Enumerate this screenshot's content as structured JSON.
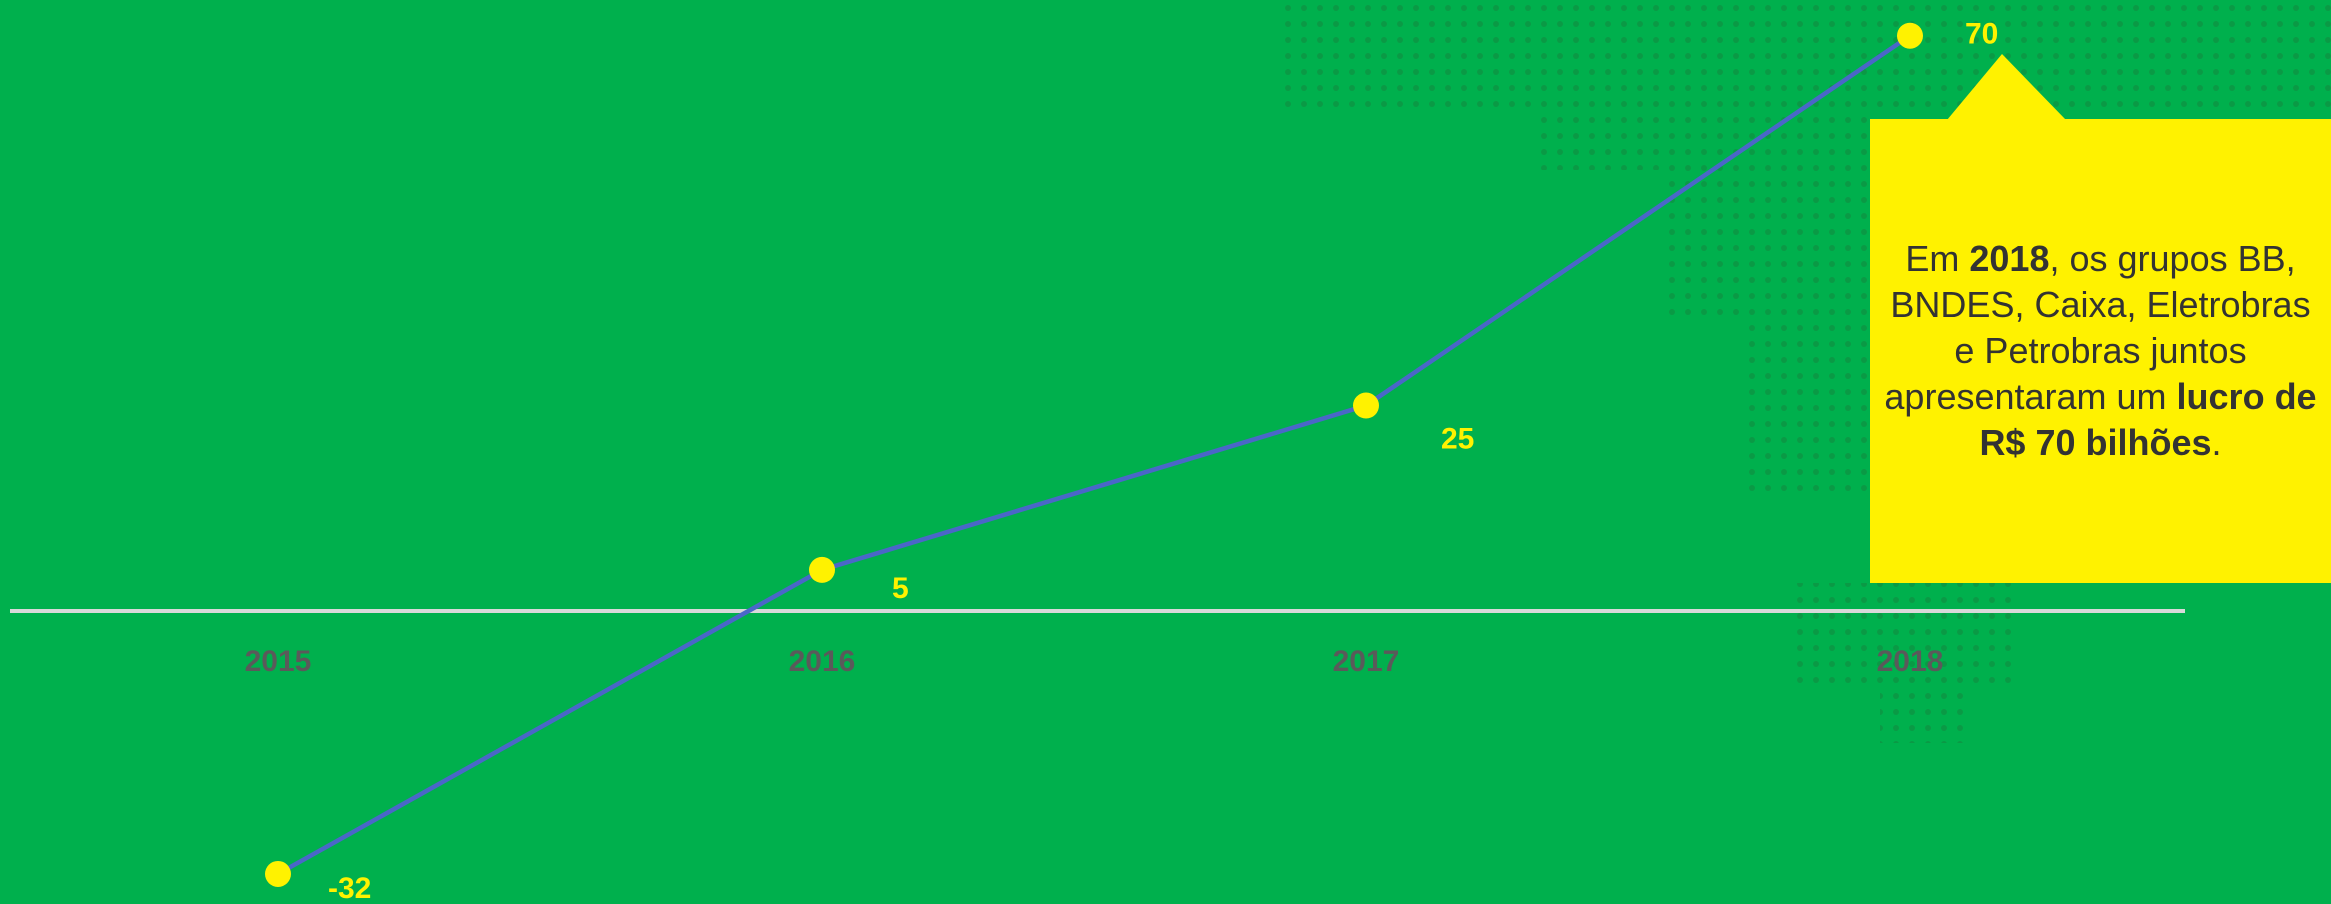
{
  "chart_data": {
    "type": "line",
    "categories": [
      "2015",
      "2016",
      "2017",
      "2018"
    ],
    "series": [
      {
        "color": "#4a67c8",
        "values": [
          -32,
          5,
          25,
          70
        ]
      }
    ],
    "point_color": "#fff200",
    "ylim": [
      -35,
      72
    ],
    "annotation": [
      "Em ",
      "2018",
      ", os grupos BB, BNDES, Caixa, Eletrobras e Petrobras juntos apresentaram um ",
      "lucro de R$ 70 bilhões",
      "."
    ]
  }
}
